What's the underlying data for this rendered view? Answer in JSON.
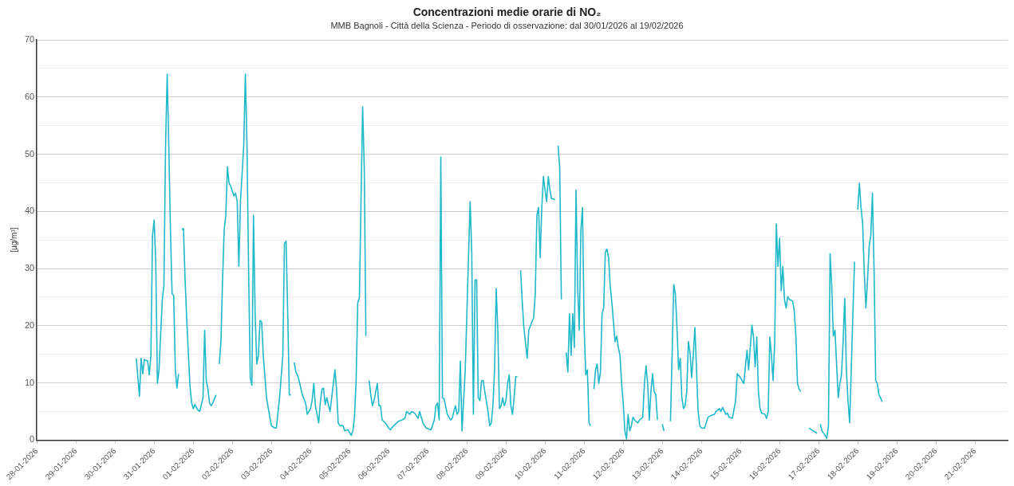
{
  "chart_data": {
    "type": "line",
    "title": "Concentrazioni medie orarie di NO₂",
    "subtitle": "MMB Bagnoli - Città della Scienza - Periodo di osservazione: dal 30/01/2026 al 19/02/2026",
    "ylabel": "[µg/m³]",
    "xlim": [
      "2026-01-28",
      "2026-02-21T20:00"
    ],
    "xticks": [
      {
        "value": "2026-01-28",
        "label": "28-01-2026"
      },
      {
        "value": "2026-01-29",
        "label": "29-01-2026"
      },
      {
        "value": "2026-01-30",
        "label": "30-01-2026"
      },
      {
        "value": "2026-01-31",
        "label": "31-01-2026"
      },
      {
        "value": "2026-02-01",
        "label": "01-02-2026"
      },
      {
        "value": "2026-02-02",
        "label": "02-02-2026"
      },
      {
        "value": "2026-02-03",
        "label": "03-02-2026"
      },
      {
        "value": "2026-02-04",
        "label": "04-02-2026"
      },
      {
        "value": "2026-02-05",
        "label": "05-02-2026"
      },
      {
        "value": "2026-02-06",
        "label": "06-02-2026"
      },
      {
        "value": "2026-02-07",
        "label": "07-02-2026"
      },
      {
        "value": "2026-02-08",
        "label": "08-02-2026"
      },
      {
        "value": "2026-02-09",
        "label": "09-02-2026"
      },
      {
        "value": "2026-02-10",
        "label": "10-02-2026"
      },
      {
        "value": "2026-02-11",
        "label": "11-02-2026"
      },
      {
        "value": "2026-02-12",
        "label": "12-02-2026"
      },
      {
        "value": "2026-02-13",
        "label": "13-02-2026"
      },
      {
        "value": "2026-02-14",
        "label": "14-02-2026"
      },
      {
        "value": "2026-02-15",
        "label": "15-02-2026"
      },
      {
        "value": "2026-02-16",
        "label": "16-02-2026"
      },
      {
        "value": "2026-02-17",
        "label": "17-02-2026"
      },
      {
        "value": "2026-02-18",
        "label": "18-02-2026"
      },
      {
        "value": "2026-02-19",
        "label": "19-02-2026"
      },
      {
        "value": "2026-02-20",
        "label": "20-02-2026"
      },
      {
        "value": "2026-02-21",
        "label": "21-02-2026"
      }
    ],
    "ylim": [
      0,
      70
    ],
    "yticks": [
      0,
      {
        "value": 5,
        "label": null
      },
      10,
      {
        "value": 15,
        "label": null
      },
      20,
      {
        "value": 25,
        "label": null
      },
      30,
      {
        "value": 35,
        "label": null
      },
      40,
      {
        "value": 45,
        "label": null
      },
      50,
      {
        "value": 55,
        "label": null
      },
      60,
      {
        "value": 65,
        "label": null
      },
      70
    ],
    "grid": "y",
    "legend": false,
    "marker": "none",
    "line_style": "solid",
    "series": [
      {
        "color": "#1fb9c9",
        "x": [
          "2026-01-30T13:00",
          "2026-01-30T15:00",
          "2026-01-30T16:00",
          "2026-01-30T17:00",
          "2026-01-30T18:00",
          "2026-01-30T20:00",
          "2026-01-30T21:00",
          "2026-01-30T22:00",
          "2026-01-30T23:00",
          "2026-01-31T00:00",
          "2026-01-31T01:00",
          "2026-01-31T02:00",
          "2026-01-31T03:00",
          "2026-01-31T05:00",
          "2026-01-31T06:00",
          "2026-01-31T07:00",
          "2026-01-31T08:00",
          "2026-01-31T09:00",
          "2026-01-31T10:00",
          "2026-01-31T11:00",
          "2026-01-31T12:00",
          "2026-01-31T13:00",
          "2026-01-31T14:00",
          "2026-01-31T15:00",
          "2026-01-31T16:00",
          "2026-01-31T17:00",
          "2026-01-31T18:00",
          "2026-01-31T19:00",
          "2026-01-31T20:00",
          "2026-01-31T22:00",
          "2026-01-31T23:00",
          "2026-02-01T00:00",
          "2026-02-01T01:00",
          "2026-02-01T03:00",
          "2026-02-01T04:00",
          "2026-02-01T06:00",
          "2026-02-01T07:00",
          "2026-02-01T08:00",
          "2026-02-01T09:00",
          "2026-02-01T10:00",
          "2026-02-01T11:00",
          "2026-02-01T12:00",
          "2026-02-01T14:00",
          "2026-02-01T15:00",
          "2026-02-01T16:00",
          "2026-02-01T17:00",
          "2026-02-01T18:00",
          "2026-02-01T19:00",
          "2026-02-01T20:00",
          "2026-02-01T21:00",
          "2026-02-01T22:00",
          "2026-02-01T23:00",
          "2026-02-02T01:00",
          "2026-02-02T02:00",
          "2026-02-02T03:00",
          "2026-02-02T04:00",
          "2026-02-02T05:00",
          "2026-02-02T07:00",
          "2026-02-02T08:00",
          "2026-02-02T09:00",
          "2026-02-02T10:00",
          "2026-02-02T11:00",
          "2026-02-02T12:00",
          "2026-02-02T13:00",
          "2026-02-02T14:00",
          "2026-02-02T15:00",
          "2026-02-02T16:00",
          "2026-02-02T17:00",
          "2026-02-02T18:00",
          "2026-02-02T19:00",
          "2026-02-02T21:00",
          "2026-02-02T23:00",
          "2026-02-03T00:00",
          "2026-02-03T02:00",
          "2026-02-03T03:00",
          "2026-02-03T05:00",
          "2026-02-03T07:00",
          "2026-02-03T08:00",
          "2026-02-03T09:00",
          "2026-02-03T10:00",
          "2026-02-03T11:00",
          "2026-02-03T12:00",
          "2026-02-03T13:00",
          "2026-02-03T14:00",
          "2026-02-03T15:00",
          "2026-02-03T16:00",
          "2026-02-03T17:00",
          "2026-02-03T19:00",
          "2026-02-03T21:00",
          "2026-02-03T22:00",
          "2026-02-04T00:00",
          "2026-02-04T01:00",
          "2026-02-04T02:00",
          "2026-02-04T03:00",
          "2026-02-04T05:00",
          "2026-02-04T06:00",
          "2026-02-04T07:00",
          "2026-02-04T08:00",
          "2026-02-04T09:00",
          "2026-02-04T10:00",
          "2026-02-04T12:00",
          "2026-02-04T13:00",
          "2026-02-04T15:00",
          "2026-02-04T16:00",
          "2026-02-04T17:00",
          "2026-02-04T18:00",
          "2026-02-04T20:00",
          "2026-02-04T21:00",
          "2026-02-04T23:00",
          "2026-02-05T01:00",
          "2026-02-05T02:00",
          "2026-02-05T03:00",
          "2026-02-05T04:00",
          "2026-02-05T05:00",
          "2026-02-05T06:00",
          "2026-02-05T07:00",
          "2026-02-05T08:00",
          "2026-02-05T09:00",
          "2026-02-05T10:00",
          "2026-02-05T11:00",
          "2026-02-05T12:00",
          "2026-02-05T13:00",
          "2026-02-05T14:00",
          "2026-02-05T15:00",
          "2026-02-05T17:00",
          "2026-02-05T18:00",
          "2026-02-05T19:00",
          "2026-02-05T20:00",
          "2026-02-05T22:00",
          "2026-02-06T00:00",
          "2026-02-06T01:00",
          "2026-02-06T03:00",
          "2026-02-06T05:00",
          "2026-02-06T06:00",
          "2026-02-06T08:00",
          "2026-02-06T10:00",
          "2026-02-06T11:00",
          "2026-02-06T13:00",
          "2026-02-06T14:00",
          "2026-02-06T16:00",
          "2026-02-06T18:00",
          "2026-02-06T19:00",
          "2026-02-06T21:00",
          "2026-02-06T23:00",
          "2026-02-07T02:00",
          "2026-02-07T04:00",
          "2026-02-07T05:00",
          "2026-02-07T06:00",
          "2026-02-07T07:00",
          "2026-02-07T08:00",
          "2026-02-07T09:00",
          "2026-02-07T10:00",
          "2026-02-07T12:00",
          "2026-02-07T14:00",
          "2026-02-07T15:00",
          "2026-02-07T16:00",
          "2026-02-07T17:00",
          "2026-02-07T18:00",
          "2026-02-07T19:00",
          "2026-02-07T20:00",
          "2026-02-07T21:00",
          "2026-02-07T23:00",
          "2026-02-08T00:00",
          "2026-02-08T01:00",
          "2026-02-08T02:00",
          "2026-02-08T03:00",
          "2026-02-08T04:00",
          "2026-02-08T05:00",
          "2026-02-08T06:00",
          "2026-02-08T07:00",
          "2026-02-08T08:00",
          "2026-02-08T09:00",
          "2026-02-08T10:00",
          "2026-02-08T11:00",
          "2026-02-08T13:00",
          "2026-02-08T14:00",
          "2026-02-08T15:00",
          "2026-02-08T16:00",
          "2026-02-08T17:00",
          "2026-02-08T18:00",
          "2026-02-08T19:00",
          "2026-02-08T20:00",
          "2026-02-08T21:00",
          "2026-02-08T22:00",
          "2026-02-08T23:00",
          "2026-02-09T00:00",
          "2026-02-09T01:00",
          "2026-02-09T02:00",
          "2026-02-09T03:00",
          "2026-02-09T04:00",
          "2026-02-09T05:00",
          "2026-02-09T06:00",
          "2026-02-09T07:00",
          "2026-02-09T08:00",
          "2026-02-09T09:00",
          "2026-02-09T10:00",
          "2026-02-09T11:00",
          "2026-02-09T13:00",
          "2026-02-09T14:00",
          "2026-02-09T16:00",
          "2026-02-09T17:00",
          "2026-02-09T18:00",
          "2026-02-09T19:00",
          "2026-02-09T20:00",
          "2026-02-09T21:00",
          "2026-02-09T22:00",
          "2026-02-09T23:00",
          "2026-02-10T00:00",
          "2026-02-10T01:00",
          "2026-02-10T02:00",
          "2026-02-10T03:00",
          "2026-02-10T04:00",
          "2026-02-10T05:00",
          "2026-02-10T06:00",
          "2026-02-10T07:00",
          "2026-02-10T08:00",
          "2026-02-10T09:00",
          "2026-02-10T10:00",
          "2026-02-10T11:00",
          "2026-02-10T13:00",
          "2026-02-10T14:00",
          "2026-02-10T15:00",
          "2026-02-10T16:00",
          "2026-02-10T17:00",
          "2026-02-10T18:00",
          "2026-02-10T19:00",
          "2026-02-10T20:00",
          "2026-02-10T21:00",
          "2026-02-10T22:00",
          "2026-02-10T23:00",
          "2026-02-11T00:00",
          "2026-02-11T01:00",
          "2026-02-11T02:00",
          "2026-02-11T03:00",
          "2026-02-11T04:00",
          "2026-02-11T05:00",
          "2026-02-11T06:00",
          "2026-02-11T07:00",
          "2026-02-11T08:00",
          "2026-02-11T09:00",
          "2026-02-11T10:00",
          "2026-02-11T11:00",
          "2026-02-11T12:00",
          "2026-02-11T13:00",
          "2026-02-11T14:00",
          "2026-02-11T15:00",
          "2026-02-11T16:00",
          "2026-02-11T17:00",
          "2026-02-11T19:00",
          "2026-02-11T20:00",
          "2026-02-11T21:00",
          "2026-02-11T22:00",
          "2026-02-11T23:00",
          "2026-02-12T00:00",
          "2026-02-12T01:00",
          "2026-02-12T02:00",
          "2026-02-12T03:00",
          "2026-02-12T04:00",
          "2026-02-12T05:00",
          "2026-02-12T06:00",
          "2026-02-12T07:00",
          "2026-02-12T09:00",
          "2026-02-12T10:00",
          "2026-02-12T12:00",
          "2026-02-12T13:00",
          "2026-02-12T14:00",
          "2026-02-12T15:00",
          "2026-02-12T16:00",
          "2026-02-12T17:00",
          "2026-02-12T18:00",
          "2026-02-12T19:00",
          "2026-02-12T20:00",
          "2026-02-12T21:00",
          "2026-02-12T22:00",
          "2026-02-13T00:00",
          "2026-02-13T01:00",
          "2026-02-13T02:00",
          "2026-02-13T05:00",
          "2026-02-13T06:00",
          "2026-02-13T07:00",
          "2026-02-13T08:00",
          "2026-02-13T09:00",
          "2026-02-13T10:00",
          "2026-02-13T11:00",
          "2026-02-13T12:00",
          "2026-02-13T13:00",
          "2026-02-13T14:00",
          "2026-02-13T15:00",
          "2026-02-13T16:00",
          "2026-02-13T17:00",
          "2026-02-13T18:00",
          "2026-02-13T19:00",
          "2026-02-13T20:00",
          "2026-02-13T21:00",
          "2026-02-13T22:00",
          "2026-02-13T23:00",
          "2026-02-14T00:00",
          "2026-02-14T02:00",
          "2026-02-14T04:00",
          "2026-02-14T06:00",
          "2026-02-14T08:00",
          "2026-02-14T09:00",
          "2026-02-14T11:00",
          "2026-02-14T12:00",
          "2026-02-14T13:00",
          "2026-02-14T15:00",
          "2026-02-14T16:00",
          "2026-02-14T17:00",
          "2026-02-14T19:00",
          "2026-02-14T21:00",
          "2026-02-14T22:00",
          "2026-02-15T00:00",
          "2026-02-15T02:00",
          "2026-02-15T04:00",
          "2026-02-15T05:00",
          "2026-02-15T07:00",
          "2026-02-15T08:00",
          "2026-02-15T09:00",
          "2026-02-15T10:00",
          "2026-02-15T11:00",
          "2026-02-15T12:00",
          "2026-02-15T13:00",
          "2026-02-15T15:00",
          "2026-02-15T16:00",
          "2026-02-15T17:00",
          "2026-02-15T18:00",
          "2026-02-15T19:00",
          "2026-02-15T20:00",
          "2026-02-15T21:00",
          "2026-02-15T22:00",
          "2026-02-15T23:00",
          "2026-02-16T00:00",
          "2026-02-16T01:00",
          "2026-02-16T02:00",
          "2026-02-16T03:00",
          "2026-02-16T04:00",
          "2026-02-16T05:00",
          "2026-02-16T06:00",
          "2026-02-16T08:00",
          "2026-02-16T09:00",
          "2026-02-16T10:00",
          "2026-02-16T11:00",
          "2026-02-16T12:00",
          "2026-02-16T13:00",
          "2026-02-16T14:00",
          "2026-02-16T18:00",
          "2026-02-16T23:00",
          "2026-02-17T00:00",
          "2026-02-17T01:00",
          "2026-02-17T02:00",
          "2026-02-17T04:00",
          "2026-02-17T05:00",
          "2026-02-17T06:00",
          "2026-02-17T07:00",
          "2026-02-17T08:00",
          "2026-02-17T09:00",
          "2026-02-17T10:00",
          "2026-02-17T12:00",
          "2026-02-17T13:00",
          "2026-02-17T14:00",
          "2026-02-17T15:00",
          "2026-02-17T16:00",
          "2026-02-17T17:00",
          "2026-02-17T18:00",
          "2026-02-17T19:00",
          "2026-02-17T20:00",
          "2026-02-17T21:00",
          "2026-02-17T22:00",
          "2026-02-17T23:00",
          "2026-02-18T00:00",
          "2026-02-18T01:00",
          "2026-02-18T02:00",
          "2026-02-18T03:00",
          "2026-02-18T04:00",
          "2026-02-18T05:00",
          "2026-02-18T06:00",
          "2026-02-18T07:00",
          "2026-02-18T08:00",
          "2026-02-18T09:00",
          "2026-02-18T10:00",
          "2026-02-18T11:00",
          "2026-02-18T12:00",
          "2026-02-18T13:00",
          "2026-02-18T14:00",
          "2026-02-18T15:00"
        ],
        "values": [
          14.3,
          7.7,
          14.3,
          11.6,
          14.1,
          13.8,
          11.4,
          14.8,
          35.8,
          38.5,
          30.9,
          9.9,
          12.3,
          24.6,
          27.0,
          51.5,
          64.0,
          51.5,
          36.8,
          25.6,
          25.3,
          12.3,
          9.1,
          11.6,
          null,
          36.8,
          37.0,
          28.0,
          21.1,
          9.4,
          6.5,
          5.5,
          6.2,
          5.2,
          5.0,
          7.4,
          19.2,
          10.4,
          8.9,
          6.5,
          6.0,
          6.5,
          7.9,
          null,
          13.3,
          17.2,
          28.0,
          36.8,
          39.3,
          47.8,
          44.9,
          44.4,
          42.7,
          43.2,
          41.7,
          30.4,
          41.7,
          51.5,
          64.0,
          51.5,
          29.5,
          10.9,
          9.6,
          39.3,
          22.1,
          13.3,
          14.8,
          20.9,
          20.7,
          14.8,
          7.4,
          4.0,
          2.5,
          2.1,
          2.1,
          7.4,
          14.8,
          34.4,
          34.8,
          22.1,
          7.9,
          7.9,
          null,
          13.6,
          11.9,
          11.4,
          10.4,
          7.9,
          6.5,
          4.5,
          5.5,
          6.9,
          9.9,
          6.0,
          3.0,
          6.5,
          8.9,
          9.1,
          6.2,
          7.4,
          5.0,
          7.4,
          12.3,
          8.9,
          3.0,
          2.5,
          2.5,
          1.6,
          1.8,
          0.8,
          1.6,
          4.0,
          10.4,
          24.1,
          24.8,
          41.7,
          58.3,
          47.6,
          18.2,
          null,
          10.4,
          7.9,
          6.0,
          6.9,
          9.9,
          6.0,
          6.0,
          3.5,
          3.0,
          2.1,
          1.8,
          2.5,
          3.0,
          3.3,
          3.5,
          3.8,
          5.0,
          4.5,
          5.0,
          4.7,
          3.8,
          5.0,
          3.0,
          2.1,
          1.8,
          3.5,
          6.0,
          6.5,
          3.5,
          49.5,
          7.4,
          7.2,
          4.5,
          3.5,
          3.8,
          5.0,
          6.0,
          4.5,
          5.0,
          13.8,
          1.6,
          12.3,
          22.1,
          31.9,
          41.7,
          32.8,
          4.5,
          28.0,
          28.0,
          7.4,
          6.9,
          10.4,
          10.4,
          8.5,
          5.0,
          2.5,
          3.0,
          6.0,
          12.3,
          26.5,
          19.2,
          5.5,
          6.0,
          7.4,
          6.0,
          6.9,
          9.9,
          11.4,
          6.0,
          4.5,
          7.4,
          11.1,
          11.1,
          null,
          29.7,
          24.1,
          19.7,
          14.3,
          19.2,
          20.7,
          21.4,
          25.6,
          39.3,
          40.7,
          31.9,
          40.7,
          46.1,
          43.7,
          41.7,
          46.1,
          43.7,
          42.2,
          42.2,
          42.0,
          null,
          51.5,
          47.6,
          24.6,
          null,
          15.3,
          11.9,
          22.1,
          14.8,
          22.1,
          16.2,
          43.7,
          27.0,
          19.2,
          36.8,
          40.7,
          19.7,
          11.4,
          12.3,
          3.0,
          2.5,
          null,
          8.9,
          12.3,
          13.3,
          9.9,
          11.9,
          22.1,
          23.1,
          32.8,
          33.4,
          31.9,
          27.0,
          24.1,
          17.2,
          18.2,
          16.2,
          14.8,
          9.9,
          6.5,
          1.6,
          0.2,
          4.5,
          1.6,
          2.5,
          4.0,
          3.5,
          3.0,
          3.5,
          4.0,
          9.9,
          13.0,
          9.9,
          3.5,
          8.5,
          11.6,
          8.5,
          7.9,
          3.5,
          null,
          2.8,
          1.6,
          null,
          3.3,
          14.8,
          27.2,
          25.6,
          19.7,
          12.3,
          14.3,
          7.4,
          5.5,
          6.0,
          8.5,
          17.2,
          15.3,
          10.9,
          14.8,
          19.7,
          12.3,
          5.0,
          2.5,
          2.1,
          2.1,
          4.0,
          4.3,
          4.5,
          5.0,
          5.5,
          5.0,
          5.7,
          4.5,
          4.7,
          4.0,
          3.8,
          6.9,
          11.6,
          10.9,
          9.9,
          15.7,
          12.3,
          20.1,
          18.0,
          12.8,
          18.0,
          8.5,
          5.5,
          4.7,
          4.5,
          3.8,
          5.0,
          18.0,
          14.8,
          10.4,
          17.2,
          37.8,
          30.4,
          35.3,
          26.1,
          30.4,
          24.6,
          23.1,
          25.1,
          24.6,
          24.3,
          22.6,
          18.2,
          9.9,
          8.9,
          8.5,
          null,
          2.1,
          1.2,
          null,
          2.8,
          1.6,
          0.8,
          0.3,
          2.5,
          32.6,
          27.0,
          18.2,
          19.2,
          7.4,
          9.9,
          11.4,
          17.2,
          24.8,
          12.3,
          6.9,
          3.0,
          12.3,
          22.1,
          31.2,
          null,
          40.3,
          44.9,
          40.7,
          37.8,
          29.3,
          23.1,
          28.0,
          33.9,
          35.8,
          43.2,
          29.9,
          10.4,
          9.9,
          7.9,
          7.4,
          6.7
        ]
      }
    ]
  }
}
